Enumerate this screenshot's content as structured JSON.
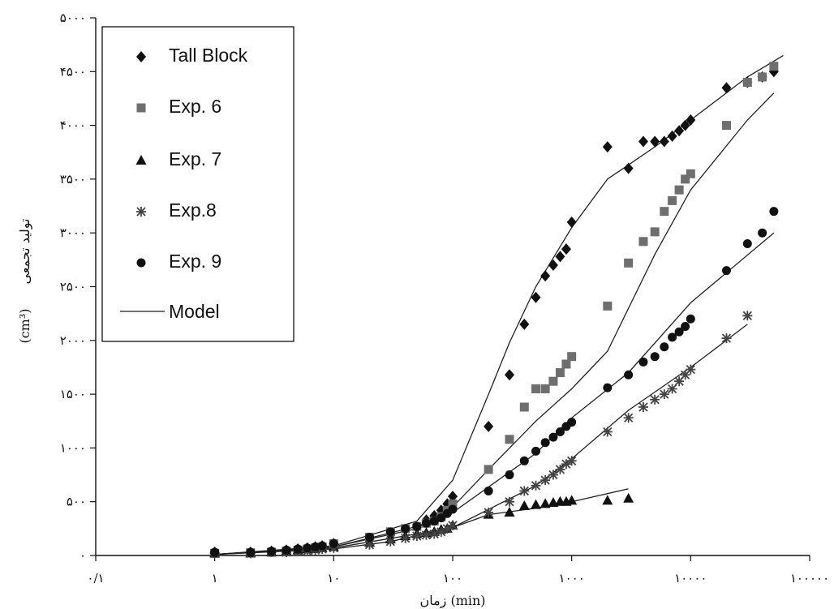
{
  "chart_data": {
    "type": "scatter",
    "x_scale": "log",
    "xlim": [
      0.1,
      100000
    ],
    "ylim": [
      0,
      5000
    ],
    "grid": false,
    "legend_position": "top-left",
    "xlabel": "زمان (min)",
    "ylabel_text": "تولید تجمعی",
    "ylabel_unit": "(cm³)",
    "x_ticks": [
      {
        "value": 0.1,
        "label": "۰/۱"
      },
      {
        "value": 1,
        "label": "۱"
      },
      {
        "value": 10,
        "label": "۱۰"
      },
      {
        "value": 100,
        "label": "۱۰۰"
      },
      {
        "value": 1000,
        "label": "۱۰۰۰"
      },
      {
        "value": 10000,
        "label": "۱۰۰۰۰"
      },
      {
        "value": 100000,
        "label": "۱۰۰۰۰۰"
      }
    ],
    "y_ticks": [
      {
        "value": 0,
        "label": "۰"
      },
      {
        "value": 500,
        "label": "۵۰۰"
      },
      {
        "value": 1000,
        "label": "۱۰۰۰"
      },
      {
        "value": 1500,
        "label": "۱۵۰۰"
      },
      {
        "value": 2000,
        "label": "۲۰۰۰"
      },
      {
        "value": 2500,
        "label": "۲۵۰۰"
      },
      {
        "value": 3000,
        "label": "۳۰۰۰"
      },
      {
        "value": 3500,
        "label": "۳۵۰۰"
      },
      {
        "value": 4000,
        "label": "۴۰۰۰"
      },
      {
        "value": 4500,
        "label": "۴۵۰۰"
      },
      {
        "value": 5000,
        "label": "۵۰۰۰"
      }
    ],
    "series": [
      {
        "name": "Tall Block",
        "marker": "diamond",
        "color": "#111111",
        "points": [
          [
            1,
            30
          ],
          [
            2,
            30
          ],
          [
            3,
            40
          ],
          [
            4,
            50
          ],
          [
            5,
            60
          ],
          [
            6,
            70
          ],
          [
            7,
            80
          ],
          [
            8,
            90
          ],
          [
            10,
            110
          ],
          [
            20,
            150
          ],
          [
            30,
            190
          ],
          [
            50,
            260
          ],
          [
            60,
            330
          ],
          [
            70,
            370
          ],
          [
            80,
            420
          ],
          [
            90,
            480
          ],
          [
            100,
            550
          ],
          [
            200,
            1200
          ],
          [
            300,
            1680
          ],
          [
            400,
            2150
          ],
          [
            500,
            2400
          ],
          [
            600,
            2600
          ],
          [
            700,
            2700
          ],
          [
            800,
            2780
          ],
          [
            900,
            2850
          ],
          [
            1000,
            3100
          ],
          [
            2000,
            3800
          ],
          [
            3000,
            3600
          ],
          [
            4000,
            3850
          ],
          [
            5000,
            3850
          ],
          [
            6000,
            3850
          ],
          [
            7000,
            3900
          ],
          [
            8000,
            3950
          ],
          [
            9000,
            4000
          ],
          [
            10000,
            4050
          ],
          [
            20000,
            4350
          ],
          [
            30000,
            4400
          ],
          [
            40000,
            4450
          ],
          [
            50000,
            4500
          ]
        ]
      },
      {
        "name": "Exp. 6",
        "marker": "square",
        "color": "#6e6e6e",
        "points": [
          [
            1,
            20
          ],
          [
            2,
            25
          ],
          [
            3,
            30
          ],
          [
            4,
            40
          ],
          [
            5,
            50
          ],
          [
            6,
            60
          ],
          [
            7,
            70
          ],
          [
            8,
            80
          ],
          [
            10,
            110
          ],
          [
            20,
            170
          ],
          [
            30,
            220
          ],
          [
            40,
            250
          ],
          [
            50,
            270
          ],
          [
            60,
            300
          ],
          [
            70,
            320
          ],
          [
            80,
            360
          ],
          [
            90,
            420
          ],
          [
            100,
            480
          ],
          [
            200,
            800
          ],
          [
            300,
            1080
          ],
          [
            400,
            1380
          ],
          [
            500,
            1550
          ],
          [
            600,
            1550
          ],
          [
            700,
            1620
          ],
          [
            800,
            1700
          ],
          [
            900,
            1780
          ],
          [
            1000,
            1850
          ],
          [
            2000,
            2320
          ],
          [
            3000,
            2720
          ],
          [
            4000,
            2920
          ],
          [
            5000,
            3010
          ],
          [
            6000,
            3200
          ],
          [
            7000,
            3300
          ],
          [
            8000,
            3400
          ],
          [
            9000,
            3500
          ],
          [
            10000,
            3550
          ],
          [
            20000,
            4000
          ],
          [
            30000,
            4400
          ],
          [
            40000,
            4450
          ],
          [
            50000,
            4550
          ]
        ]
      },
      {
        "name": "Exp. 7",
        "marker": "triangle",
        "color": "#111111",
        "points": [
          [
            1,
            20
          ],
          [
            2,
            20
          ],
          [
            3,
            30
          ],
          [
            4,
            40
          ],
          [
            5,
            50
          ],
          [
            6,
            60
          ],
          [
            7,
            60
          ],
          [
            8,
            70
          ],
          [
            10,
            80
          ],
          [
            20,
            120
          ],
          [
            30,
            150
          ],
          [
            40,
            180
          ],
          [
            50,
            200
          ],
          [
            60,
            210
          ],
          [
            70,
            220
          ],
          [
            80,
            240
          ],
          [
            90,
            250
          ],
          [
            100,
            280
          ],
          [
            200,
            380
          ],
          [
            300,
            400
          ],
          [
            400,
            460
          ],
          [
            500,
            470
          ],
          [
            600,
            480
          ],
          [
            700,
            490
          ],
          [
            800,
            500
          ],
          [
            900,
            500
          ],
          [
            1000,
            510
          ],
          [
            2000,
            510
          ],
          [
            3000,
            530
          ]
        ]
      },
      {
        "name": "Exp.8",
        "marker": "star",
        "color": "#444444",
        "points": [
          [
            1,
            20
          ],
          [
            2,
            20
          ],
          [
            3,
            30
          ],
          [
            4,
            30
          ],
          [
            5,
            40
          ],
          [
            6,
            40
          ],
          [
            7,
            50
          ],
          [
            8,
            60
          ],
          [
            10,
            70
          ],
          [
            20,
            100
          ],
          [
            30,
            130
          ],
          [
            40,
            160
          ],
          [
            50,
            180
          ],
          [
            60,
            190
          ],
          [
            70,
            200
          ],
          [
            80,
            220
          ],
          [
            90,
            250
          ],
          [
            100,
            280
          ],
          [
            200,
            400
          ],
          [
            300,
            500
          ],
          [
            400,
            600
          ],
          [
            500,
            650
          ],
          [
            600,
            700
          ],
          [
            700,
            750
          ],
          [
            800,
            800
          ],
          [
            900,
            850
          ],
          [
            1000,
            880
          ],
          [
            2000,
            1150
          ],
          [
            3000,
            1280
          ],
          [
            4000,
            1380
          ],
          [
            5000,
            1450
          ],
          [
            6000,
            1500
          ],
          [
            7000,
            1550
          ],
          [
            8000,
            1620
          ],
          [
            9000,
            1680
          ],
          [
            10000,
            1730
          ],
          [
            20000,
            2020
          ],
          [
            30000,
            2230
          ]
        ]
      },
      {
        "name": "Exp. 9",
        "marker": "circle",
        "color": "#111111",
        "points": [
          [
            1,
            30
          ],
          [
            2,
            30
          ],
          [
            3,
            40
          ],
          [
            4,
            50
          ],
          [
            5,
            60
          ],
          [
            6,
            70
          ],
          [
            7,
            80
          ],
          [
            8,
            90
          ],
          [
            10,
            110
          ],
          [
            20,
            170
          ],
          [
            30,
            220
          ],
          [
            40,
            250
          ],
          [
            50,
            270
          ],
          [
            60,
            300
          ],
          [
            70,
            320
          ],
          [
            80,
            350
          ],
          [
            90,
            390
          ],
          [
            100,
            430
          ],
          [
            200,
            600
          ],
          [
            300,
            750
          ],
          [
            400,
            880
          ],
          [
            500,
            970
          ],
          [
            600,
            1050
          ],
          [
            700,
            1100
          ],
          [
            800,
            1150
          ],
          [
            900,
            1200
          ],
          [
            1000,
            1240
          ],
          [
            2000,
            1560
          ],
          [
            3000,
            1680
          ],
          [
            4000,
            1800
          ],
          [
            5000,
            1850
          ],
          [
            6000,
            1940
          ],
          [
            7000,
            2030
          ],
          [
            8000,
            2080
          ],
          [
            9000,
            2130
          ],
          [
            10000,
            2200
          ],
          [
            20000,
            2650
          ],
          [
            30000,
            2900
          ],
          [
            40000,
            3000
          ],
          [
            50000,
            3200
          ]
        ]
      },
      {
        "name": "Model",
        "marker": "line",
        "color": "#222222",
        "lines": [
          [
            [
              1,
              10
            ],
            [
              10,
              90
            ],
            [
              50,
              320
            ],
            [
              100,
              700
            ],
            [
              200,
              1500
            ],
            [
              300,
              1980
            ],
            [
              500,
              2500
            ],
            [
              1000,
              3050
            ],
            [
              2000,
              3500
            ],
            [
              5000,
              3800
            ],
            [
              10000,
              4050
            ],
            [
              30000,
              4450
            ],
            [
              60000,
              4650
            ]
          ],
          [
            [
              1,
              10
            ],
            [
              10,
              80
            ],
            [
              50,
              250
            ],
            [
              100,
              450
            ],
            [
              200,
              800
            ],
            [
              500,
              1250
            ],
            [
              1000,
              1550
            ],
            [
              2000,
              1900
            ],
            [
              5000,
              2800
            ],
            [
              10000,
              3400
            ],
            [
              30000,
              4050
            ],
            [
              50000,
              4300
            ]
          ],
          [
            [
              1,
              10
            ],
            [
              10,
              60
            ],
            [
              30,
              130
            ],
            [
              100,
              260
            ],
            [
              200,
              380
            ],
            [
              500,
              440
            ],
            [
              1000,
              500
            ],
            [
              3000,
              620
            ]
          ],
          [
            [
              1,
              10
            ],
            [
              10,
              70
            ],
            [
              50,
              200
            ],
            [
              100,
              260
            ],
            [
              500,
              650
            ],
            [
              1000,
              900
            ],
            [
              3000,
              1350
            ],
            [
              10000,
              1750
            ],
            [
              30000,
              2150
            ]
          ],
          [
            [
              1,
              10
            ],
            [
              10,
              80
            ],
            [
              50,
              270
            ],
            [
              100,
              400
            ],
            [
              500,
              950
            ],
            [
              1000,
              1280
            ],
            [
              3000,
              1700
            ],
            [
              10000,
              2350
            ],
            [
              50000,
              3000
            ]
          ]
        ]
      }
    ]
  }
}
